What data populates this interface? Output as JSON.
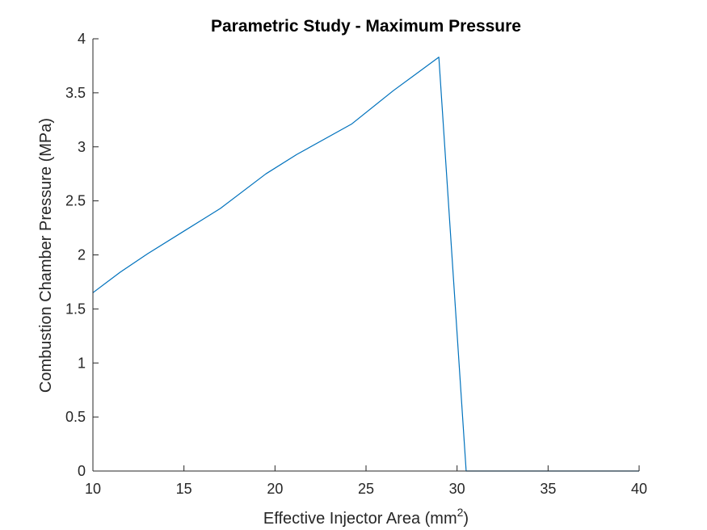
{
  "chart_data": {
    "type": "line",
    "title": "Parametric Study - Maximum Pressure",
    "xlabel": {
      "text": "Effective Injector Area (mm",
      "sup": "2",
      "suffix": ")"
    },
    "ylabel": "Combustion Chamber Pressure (MPa)",
    "xlim": [
      10,
      40
    ],
    "ylim": [
      0,
      4
    ],
    "xticks": [
      10,
      15,
      20,
      25,
      30,
      35,
      40
    ],
    "xtick_labels": [
      "10",
      "15",
      "20",
      "25",
      "30",
      "35",
      "40"
    ],
    "yticks": [
      0,
      0.5,
      1,
      1.5,
      2,
      2.5,
      3,
      3.5,
      4
    ],
    "ytick_labels": [
      "0",
      "0.5",
      "1",
      "1.5",
      "2",
      "2.5",
      "3",
      "3.5",
      "4"
    ],
    "grid": false,
    "legend": "none",
    "series": [
      {
        "color": "#0072BD",
        "x": [
          10,
          11.5,
          13,
          15,
          17,
          19.5,
          21.2,
          24.2,
          26.5,
          29,
          30.5,
          31,
          35,
          40
        ],
        "y": [
          1.65,
          1.84,
          2.01,
          2.22,
          2.43,
          2.75,
          2.93,
          3.21,
          3.52,
          3.83,
          0,
          0,
          0,
          0
        ]
      }
    ]
  }
}
